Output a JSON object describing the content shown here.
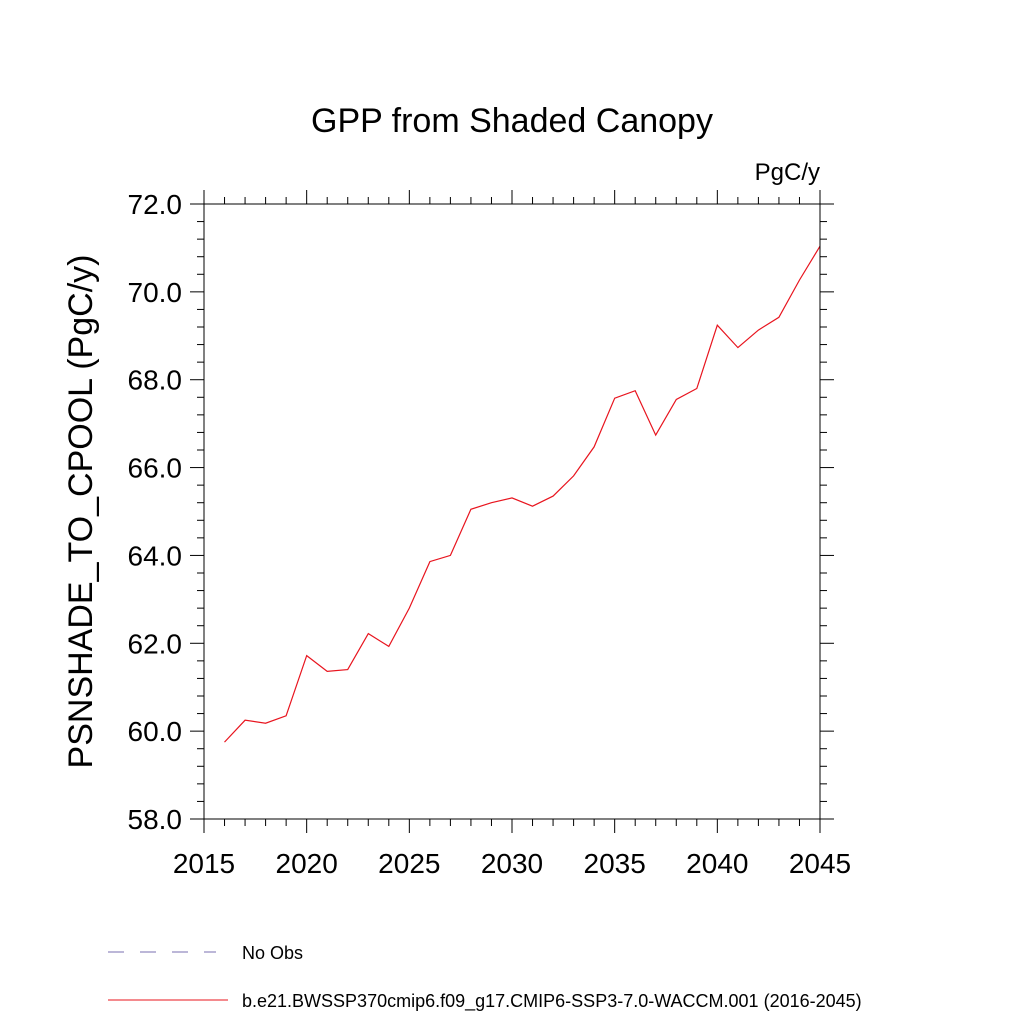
{
  "chart_data": {
    "type": "line",
    "title": "GPP from Shaded Canopy",
    "units_label": "PgC/y",
    "xlabel": "",
    "ylabel": "PSNSHADE_TO_CPOOL  (PgC/y)",
    "xlim": [
      2015,
      2045
    ],
    "ylim": [
      58.0,
      72.0
    ],
    "x_ticks": [
      2015,
      2020,
      2025,
      2030,
      2035,
      2040,
      2045
    ],
    "x_tick_labels": [
      "2015",
      "2020",
      "2025",
      "2030",
      "2035",
      "2040",
      "2045"
    ],
    "y_ticks": [
      58.0,
      60.0,
      62.0,
      64.0,
      66.0,
      68.0,
      70.0,
      72.0
    ],
    "y_tick_labels": [
      "58.0",
      "60.0",
      "62.0",
      "64.0",
      "66.0",
      "68.0",
      "70.0",
      "72.0"
    ],
    "grid": false,
    "series": [
      {
        "name": "b.e21.BWSSP370cmip6.f09_g17.CMIP6-SSP3-7.0-WACCM.001 (2016-2045)",
        "color": "#e8141e",
        "style": "solid",
        "x": [
          2016,
          2017,
          2018,
          2019,
          2020,
          2021,
          2022,
          2023,
          2024,
          2025,
          2026,
          2027,
          2028,
          2029,
          2030,
          2031,
          2032,
          2033,
          2034,
          2035,
          2036,
          2037,
          2038,
          2039,
          2040,
          2041,
          2042,
          2043,
          2044,
          2045
        ],
        "y": [
          59.75,
          60.25,
          60.18,
          60.35,
          61.72,
          61.36,
          61.4,
          62.22,
          61.93,
          62.8,
          63.86,
          64.0,
          65.05,
          65.2,
          65.31,
          65.12,
          65.35,
          65.81,
          66.47,
          67.58,
          67.75,
          66.74,
          67.55,
          67.8,
          69.24,
          68.73,
          69.13,
          69.42,
          70.27,
          71.04
        ]
      }
    ],
    "legend": [
      {
        "label": "No Obs",
        "color": "#7a6fb0",
        "style": "dashed"
      },
      {
        "label": "b.e21.BWSSP370cmip6.f09_g17.CMIP6-SSP3-7.0-WACCM.001 (2016-2045)",
        "color": "#e8141e",
        "style": "solid"
      }
    ]
  }
}
